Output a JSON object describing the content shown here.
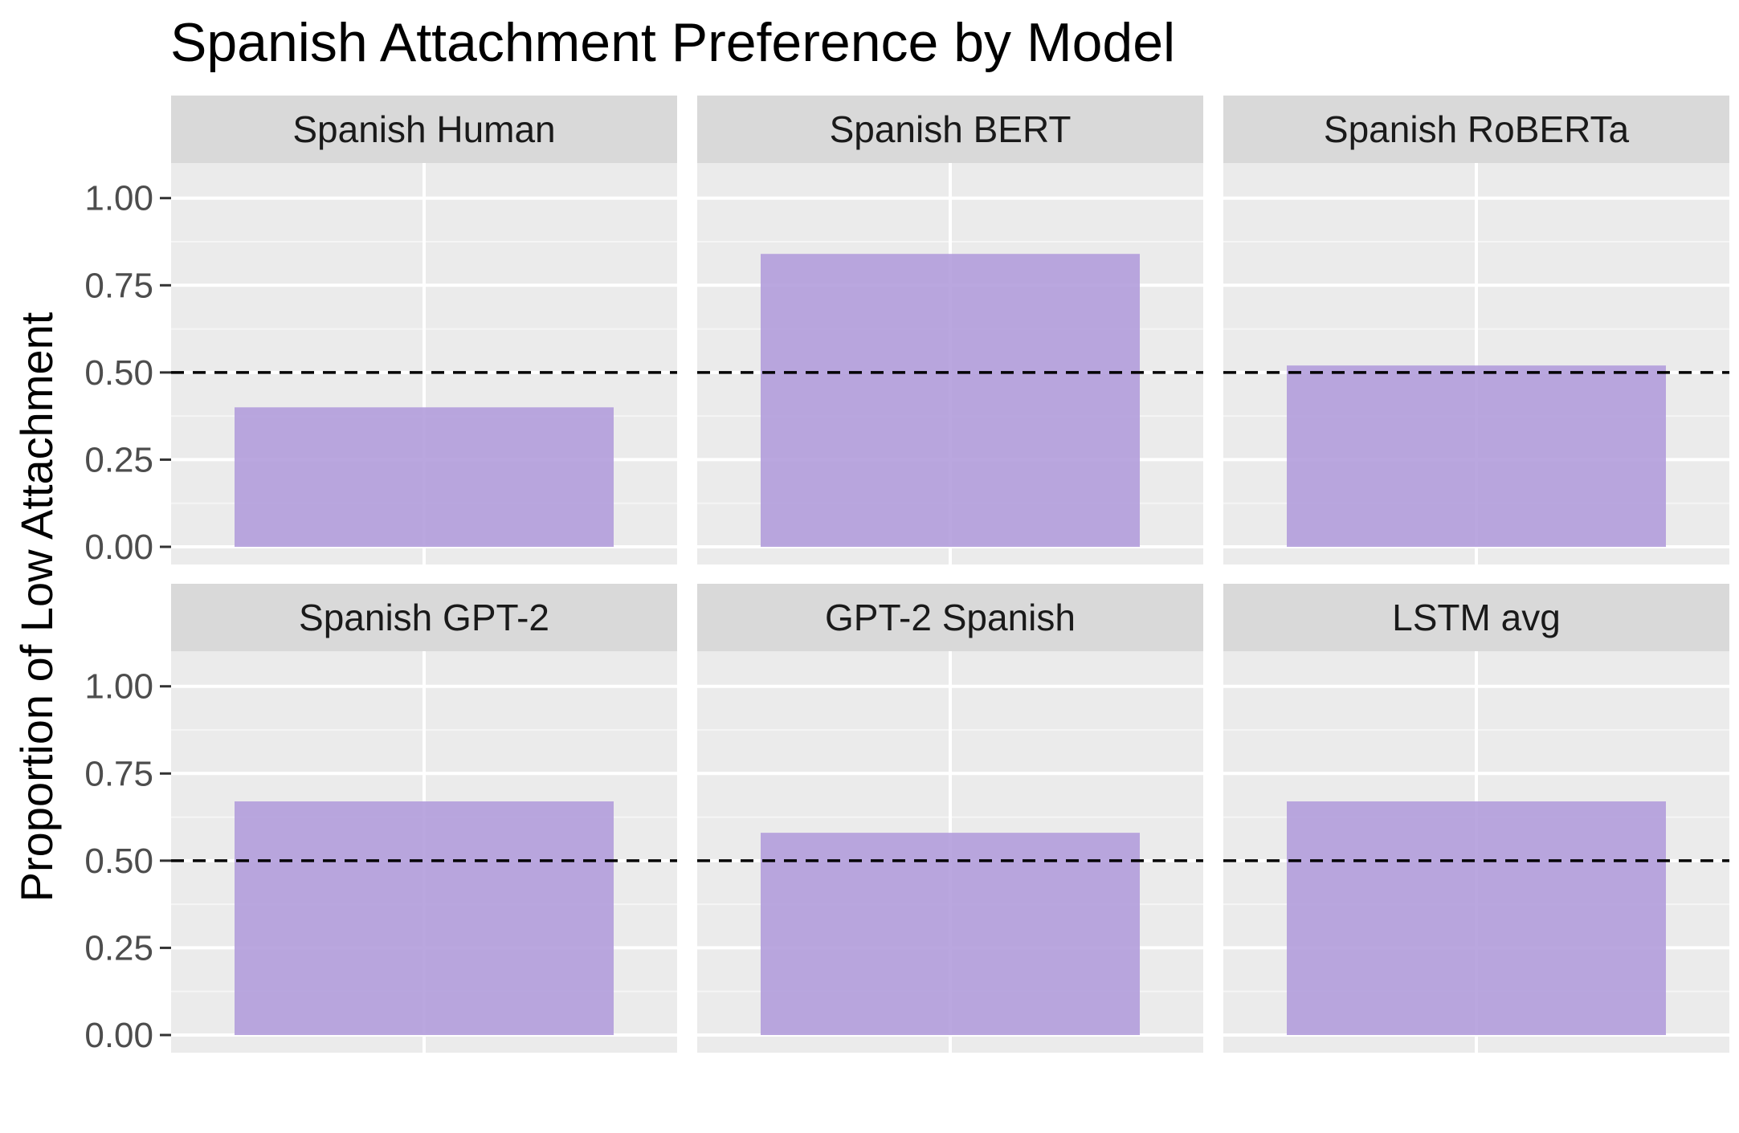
{
  "chart_data": {
    "type": "bar",
    "title": "Spanish Attachment Preference by Model",
    "xlabel": "",
    "ylabel": "Proportion of Low Attachment",
    "ylim": [
      0,
      1.05
    ],
    "yticks": [
      "0.00",
      "0.25",
      "0.50",
      "0.75",
      "1.00"
    ],
    "reference_line": 0.5,
    "grid": true,
    "legend": "none",
    "bar_color": "#b39ddb",
    "panels": [
      {
        "name": "Spanish Human",
        "value": 0.4
      },
      {
        "name": "Spanish BERT",
        "value": 0.84
      },
      {
        "name": "Spanish RoBERTa",
        "value": 0.52
      },
      {
        "name": "Spanish GPT-2",
        "value": 0.67
      },
      {
        "name": "GPT-2 Spanish",
        "value": 0.58
      },
      {
        "name": "LSTM avg",
        "value": 0.67
      }
    ]
  }
}
